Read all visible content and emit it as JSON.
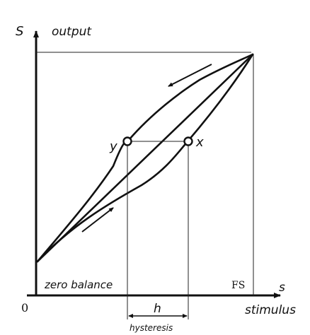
{
  "labels": {
    "y_axis_symbol": "S",
    "y_axis_name": "output",
    "x_axis_symbol": "s",
    "x_axis_name": "stimulus",
    "origin": "0",
    "zero_balance": "zero balance",
    "full_scale": "FS",
    "point_y": "y",
    "point_x": "x",
    "hysteresis_symbol": "h",
    "hysteresis_name": "hysteresis"
  },
  "icons": {
    "arrow_up": "arrow-up-icon",
    "arrow_down": "arrow-down-icon"
  }
}
